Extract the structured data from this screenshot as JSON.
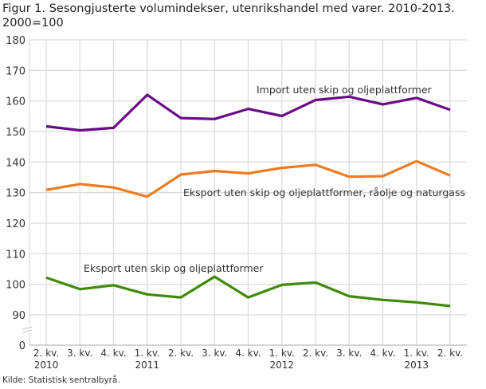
{
  "title": "Figur 1. Sesongjusterte volumindekser, utenrikshandel med varer. 2010-2013. 2000=100",
  "source": "Kilde: Statistisk sentralbyrå.",
  "chart_data": {
    "type": "line",
    "title": "Figur 1. Sesongjusterte volumindekser, utenrikshandel med varer. 2010-2013. 2000=100",
    "categories": [
      "2. kv. 2010",
      "3. kv. 2010",
      "4. kv. 2010",
      "1. kv. 2011",
      "2. kv. 2011",
      "3. kv. 2011",
      "4. kv. 2011",
      "1. kv. 2012",
      "2. kv. 2012",
      "3. kv. 2012",
      "4. kv. 2012",
      "1. kv. 2013",
      "2. kv. 2013"
    ],
    "x_tick_labels": [
      {
        "line1": "2. kv.",
        "line2": "2010"
      },
      {
        "line1": "3. kv.",
        "line2": ""
      },
      {
        "line1": "4. kv.",
        "line2": ""
      },
      {
        "line1": "1. kv.",
        "line2": "2011"
      },
      {
        "line1": "2. kv.",
        "line2": ""
      },
      {
        "line1": "3. kv.",
        "line2": ""
      },
      {
        "line1": "4. kv.",
        "line2": ""
      },
      {
        "line1": "1. kv.",
        "line2": "2012"
      },
      {
        "line1": "2. kv.",
        "line2": ""
      },
      {
        "line1": "3. kv.",
        "line2": ""
      },
      {
        "line1": "4. kv.",
        "line2": ""
      },
      {
        "line1": "1. kv.",
        "line2": "2013"
      },
      {
        "line1": "2. kv.",
        "line2": ""
      }
    ],
    "y_ticks": [
      0,
      90,
      100,
      110,
      120,
      130,
      140,
      150,
      160,
      170,
      180
    ],
    "ylim": [
      0,
      180
    ],
    "y_axis_break": [
      0,
      90
    ],
    "grid": true,
    "legend": "inline labels",
    "series": [
      {
        "name": "Import uten skip og oljeplattformer",
        "color": "#6a0b86",
        "values": [
          151.7,
          150.4,
          151.2,
          162.0,
          154.4,
          154.1,
          157.4,
          155.1,
          160.3,
          161.4,
          158.9,
          161.0,
          157.1
        ]
      },
      {
        "name": "Eksport uten skip og oljeplattformer, råolje og naturgass",
        "color": "#f07a22",
        "values": [
          130.9,
          132.8,
          131.7,
          128.7,
          135.9,
          137.1,
          136.3,
          138.1,
          139.1,
          135.2,
          135.4,
          140.3,
          135.6
        ]
      },
      {
        "name": "Eksport uten skip og oljeplattformer",
        "color": "#3f8a0a",
        "values": [
          102.2,
          98.4,
          99.7,
          96.7,
          95.7,
          102.5,
          95.7,
          99.8,
          100.6,
          96.1,
          94.9,
          94.1,
          92.9
        ]
      }
    ]
  }
}
